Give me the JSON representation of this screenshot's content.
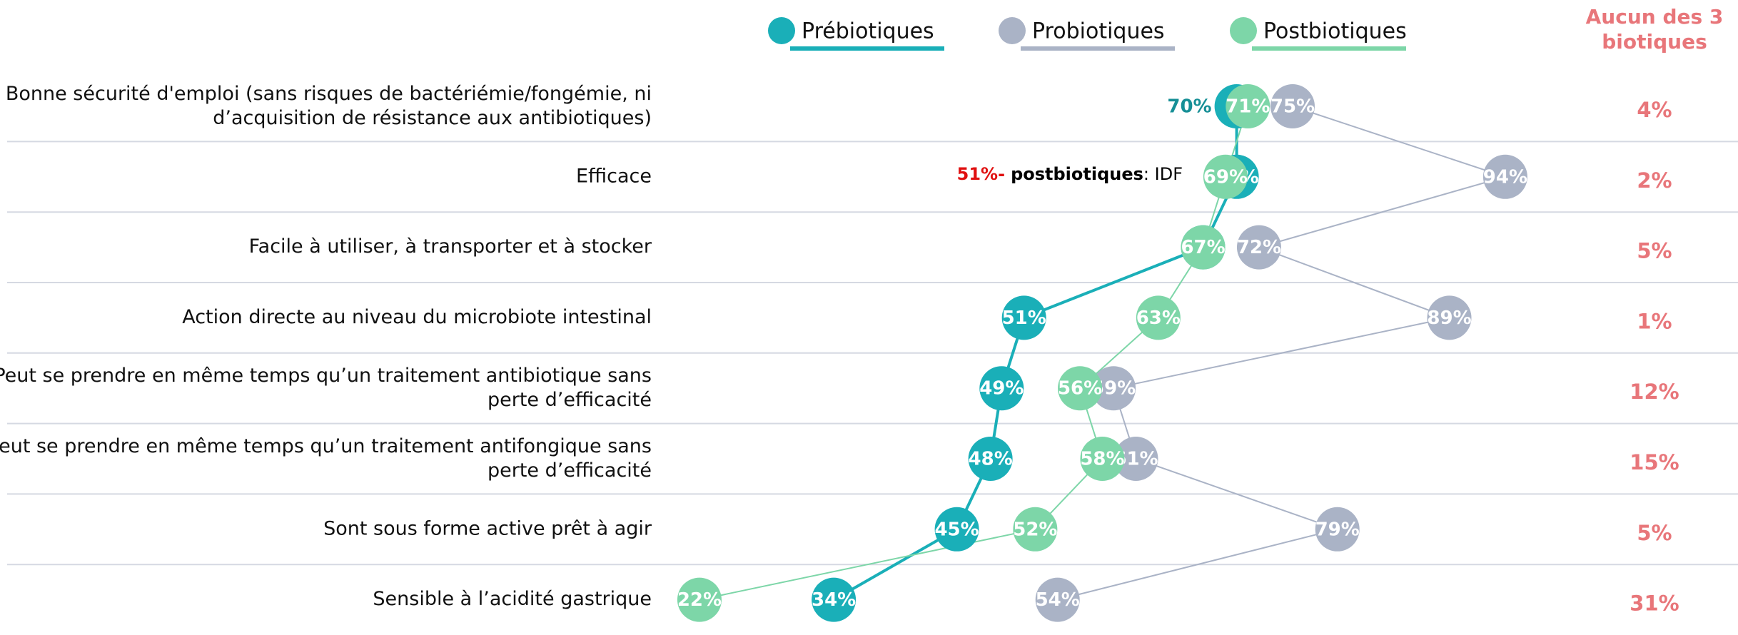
{
  "chart_data": {
    "type": "dot",
    "categories": [
      "Bonne sécurité d'emploi (sans risques de bactériémie/fongémie, ni\nd’acquisition de résistance aux antibiotiques)",
      "Efficace",
      "Facile à utiliser, à transporter et à stocker",
      "Action directe au niveau du microbiote intestinal",
      "Peut se prendre en même temps qu’un traitement antibiotique sans\nperte d’efficacité",
      "Peut se prendre en même temps qu’un traitement antifongique sans\nperte d’efficacité",
      "Sont sous forme active prêt à agir",
      "Sensible à l’acidité gastrique"
    ],
    "series": [
      {
        "name": "Prébiotiques",
        "color": "#1aafb8",
        "values": [
          70,
          70,
          67,
          51,
          49,
          48,
          45,
          34
        ],
        "value_labels": [
          "70%",
          "70%",
          "67%",
          "51%",
          "49%",
          "48%",
          "45%",
          "34%"
        ]
      },
      {
        "name": "Probiotiques",
        "color": "#aab3c6",
        "values": [
          75,
          94,
          72,
          89,
          59,
          61,
          79,
          54
        ],
        "value_labels": [
          "75%",
          "94%",
          "72%",
          "89%",
          "59%",
          "61%",
          "79%",
          "54%"
        ]
      },
      {
        "name": "Postbiotiques",
        "color": "#7dd6a8",
        "values": [
          71,
          69,
          67,
          63,
          56,
          58,
          52,
          22
        ],
        "value_labels": [
          "71%",
          "69%",
          "67%",
          "63%",
          "56%",
          "58%",
          "52%",
          "22%"
        ]
      }
    ],
    "none": {
      "title": [
        "Aucun des 3",
        "biotiques"
      ],
      "color": "#e8767a",
      "values": [
        4,
        2,
        5,
        1,
        12,
        15,
        5,
        31
      ],
      "value_labels": [
        "4%",
        "2%",
        "5%",
        "1%",
        "12%",
        "15%",
        "5%",
        "31%"
      ]
    },
    "annotation": [
      "51%-",
      "postbiotiques",
      ": IDF"
    ]
  }
}
